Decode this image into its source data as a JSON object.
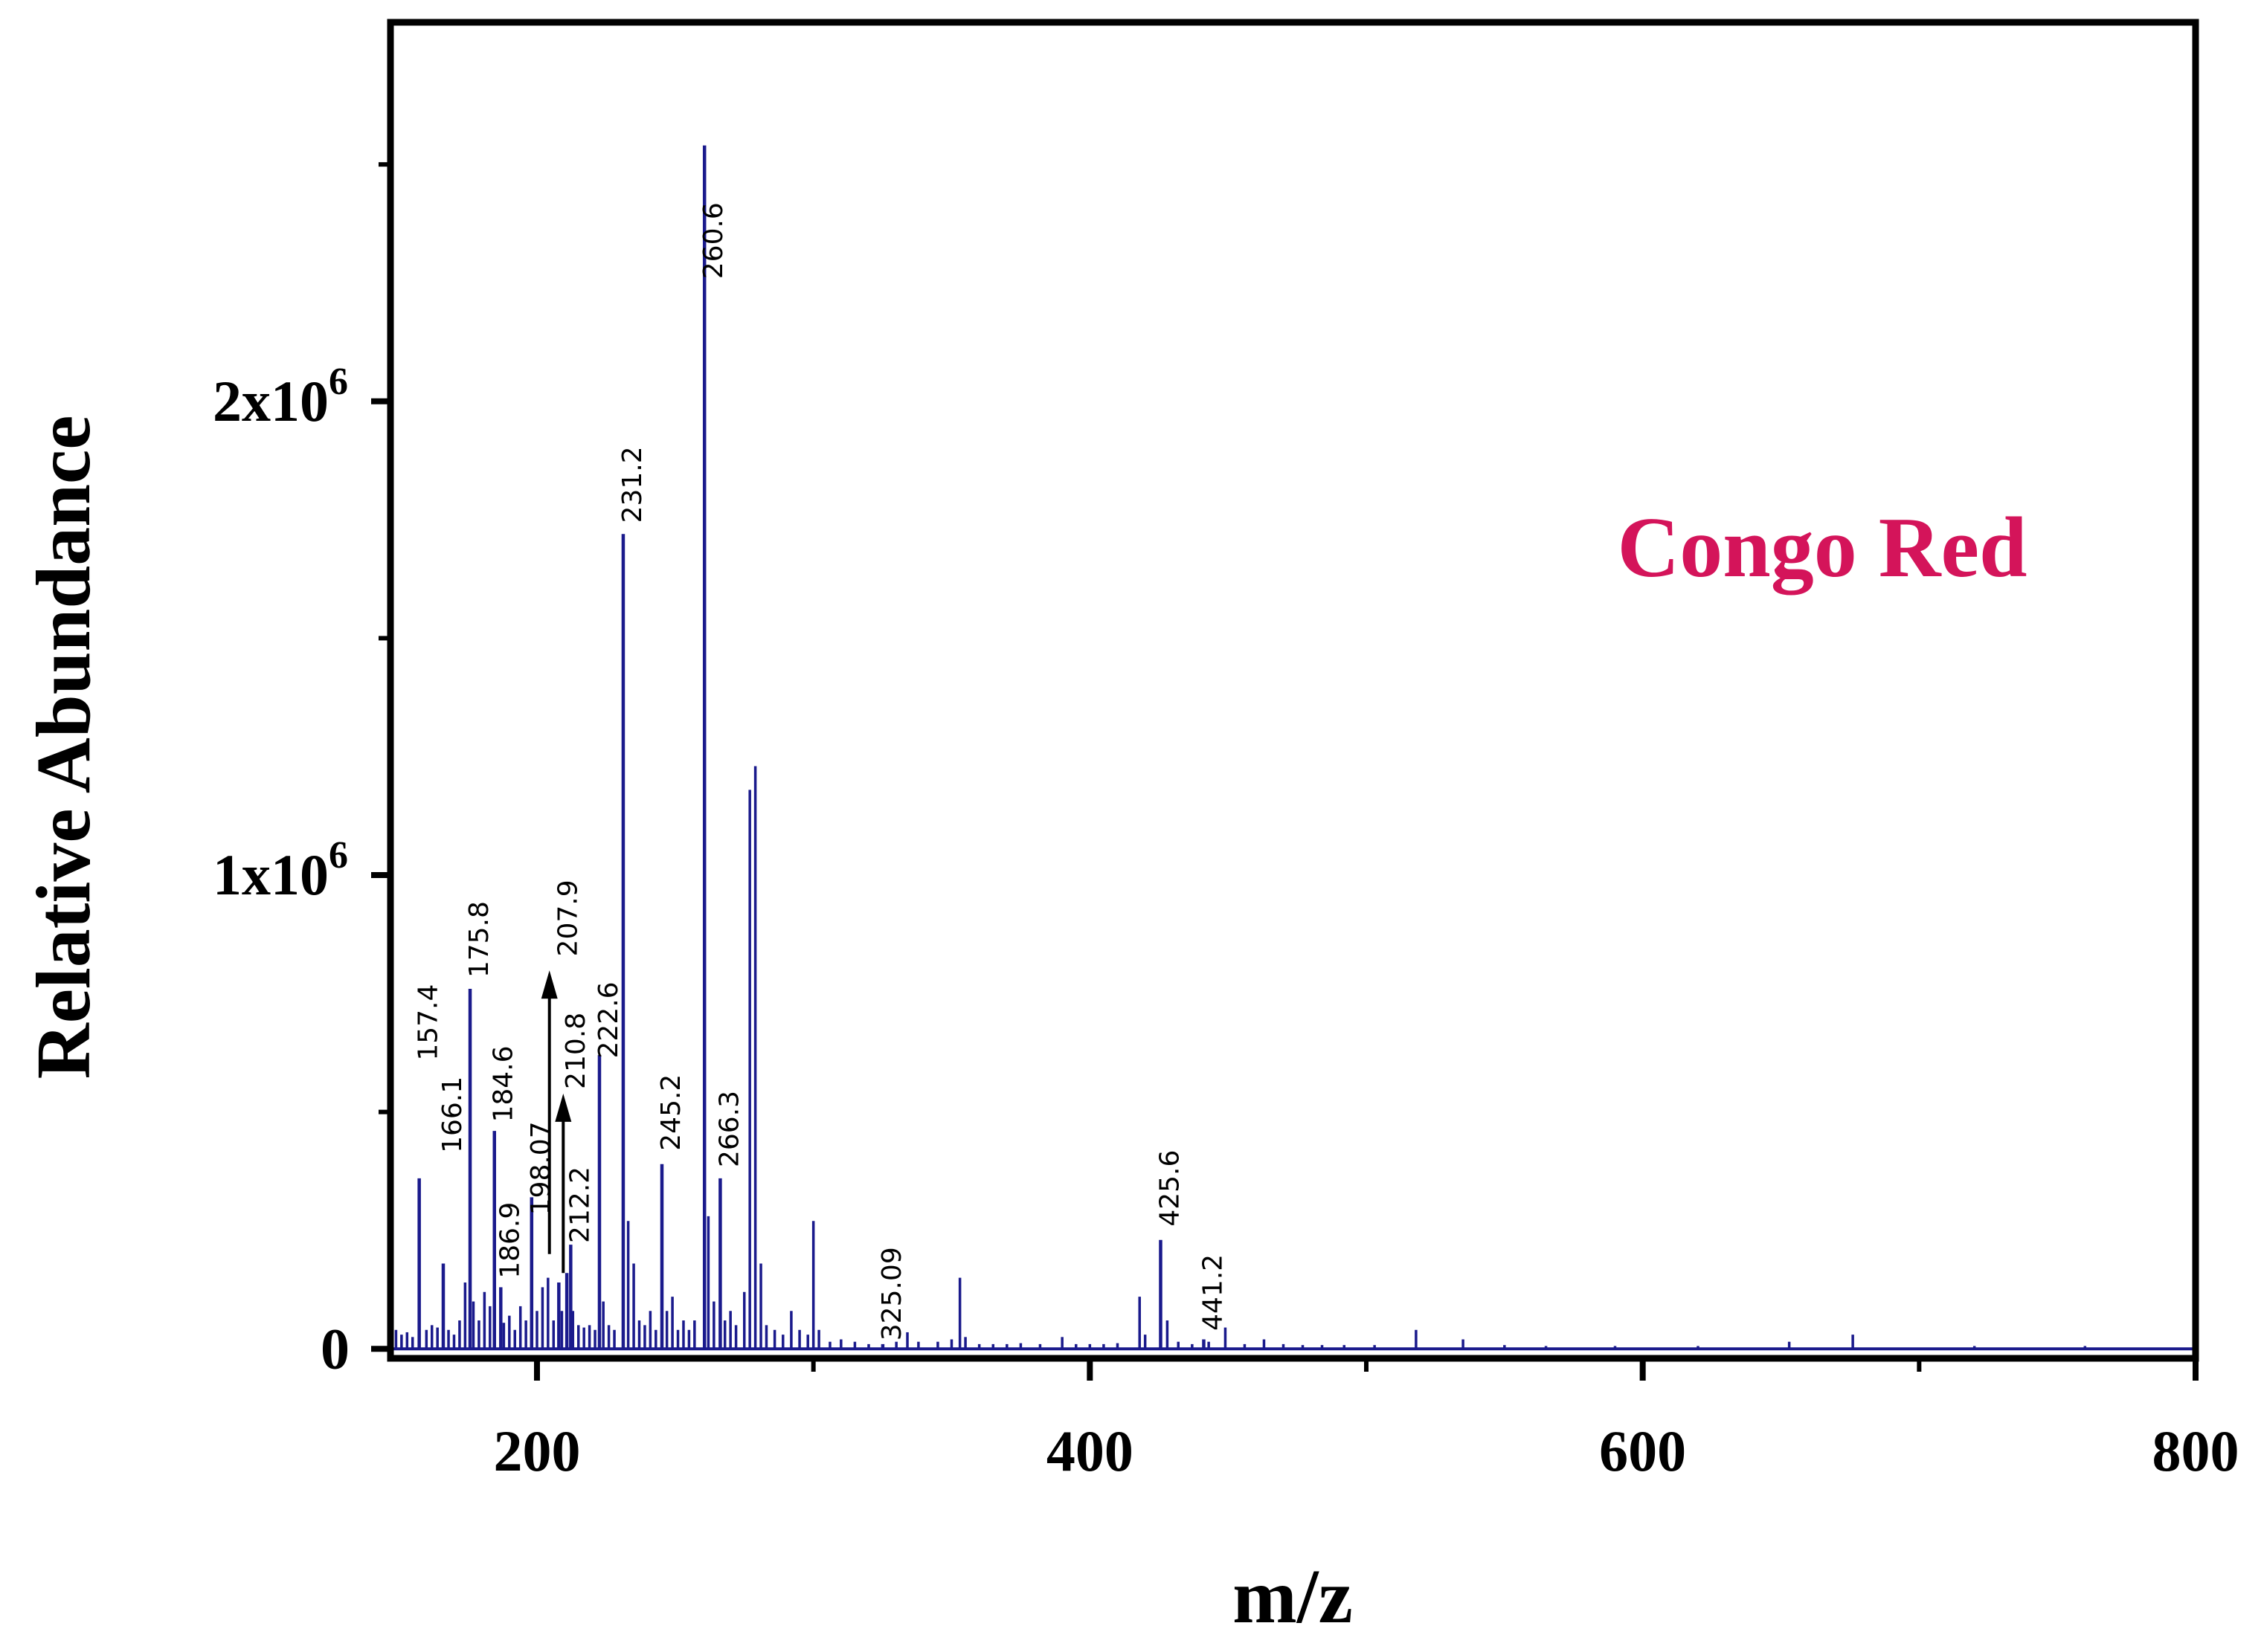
{
  "chart_data": {
    "type": "bar",
    "title": "",
    "annotation": {
      "text": "Congo Red",
      "color": "#d4145a"
    },
    "xlabel": "m/z",
    "ylabel": "Relative Abundance",
    "xlim": [
      147,
      800
    ],
    "ylim": [
      -20000,
      2800000
    ],
    "x_ticks": [
      {
        "value": 200,
        "label": "200"
      },
      {
        "value": 400,
        "label": "400"
      },
      {
        "value": 600,
        "label": "600"
      },
      {
        "value": 800,
        "label": "800"
      }
    ],
    "y_ticks": [
      {
        "value": 0,
        "base": "0",
        "exp": ""
      },
      {
        "value": 1000000,
        "base": "1x10",
        "exp": "6"
      },
      {
        "value": 2000000,
        "base": "2x10",
        "exp": "6"
      }
    ],
    "y_minor_ticks": [
      500000,
      1500000,
      2500000
    ],
    "x_minor_ticks": [
      300,
      500,
      700
    ],
    "series_color": "#1a1a8c",
    "peaks": [
      {
        "mz": 157.4,
        "abundance": 360000,
        "label": "157.4",
        "label_top": 770000
      },
      {
        "mz": 166.1,
        "abundance": 180000,
        "label": "166.1",
        "label_top": 575000
      },
      {
        "mz": 175.8,
        "abundance": 760000,
        "label": "175.8",
        "label_top": 945000
      },
      {
        "mz": 184.6,
        "abundance": 460000,
        "label": "184.6",
        "label_top": 640000
      },
      {
        "mz": 186.9,
        "abundance": 130000,
        "label": "186.9",
        "label_top": 310000
      },
      {
        "mz": 198.07,
        "abundance": 320000,
        "label": "198.07",
        "label_top": 480000
      },
      {
        "mz": 207.9,
        "abundance": 140000,
        "label": "207.9",
        "label_top": 990000
      },
      {
        "mz": 210.8,
        "abundance": 160000,
        "label": "210.8",
        "label_top": 710000
      },
      {
        "mz": 212.2,
        "abundance": 220000,
        "label": "212.2",
        "label_top": 385000
      },
      {
        "mz": 222.6,
        "abundance": 620000,
        "label": "222.6",
        "label_top": 775000
      },
      {
        "mz": 231.2,
        "abundance": 1720000,
        "label": "231.2",
        "label_top": 1905000
      },
      {
        "mz": 245.2,
        "abundance": 390000,
        "label": "245.2",
        "label_top": 580000
      },
      {
        "mz": 260.6,
        "abundance": 2540000,
        "label": "260.6",
        "label_top": 2420000
      },
      {
        "mz": 266.3,
        "abundance": 360000,
        "label": "266.3",
        "label_top": 545000
      },
      {
        "mz": 325.09,
        "abundance": 10000,
        "label": "325.09",
        "label_top": 215000
      },
      {
        "mz": 425.6,
        "abundance": 230000,
        "label": "425.6",
        "label_top": 420000
      },
      {
        "mz": 441.2,
        "abundance": 20000,
        "label": "441.2",
        "label_top": 200000
      }
    ],
    "minor_peaks": [
      [
        149,
        40000
      ],
      [
        151,
        30000
      ],
      [
        153,
        35000
      ],
      [
        155,
        25000
      ],
      [
        160,
        40000
      ],
      [
        162,
        50000
      ],
      [
        164,
        45000
      ],
      [
        168,
        40000
      ],
      [
        170,
        30000
      ],
      [
        172,
        60000
      ],
      [
        174,
        140000
      ],
      [
        177,
        100000
      ],
      [
        179,
        60000
      ],
      [
        181,
        120000
      ],
      [
        183,
        90000
      ],
      [
        188,
        55000
      ],
      [
        190,
        70000
      ],
      [
        192,
        40000
      ],
      [
        194,
        90000
      ],
      [
        196,
        60000
      ],
      [
        200,
        80000
      ],
      [
        202,
        130000
      ],
      [
        204,
        150000
      ],
      [
        206,
        60000
      ],
      [
        209,
        80000
      ],
      [
        213,
        80000
      ],
      [
        215,
        50000
      ],
      [
        217,
        45000
      ],
      [
        219,
        50000
      ],
      [
        221,
        40000
      ],
      [
        224,
        100000
      ],
      [
        226,
        50000
      ],
      [
        228,
        40000
      ],
      [
        233,
        270000
      ],
      [
        235,
        180000
      ],
      [
        237,
        60000
      ],
      [
        239,
        50000
      ],
      [
        241,
        80000
      ],
      [
        243,
        40000
      ],
      [
        247,
        80000
      ],
      [
        249,
        110000
      ],
      [
        251,
        40000
      ],
      [
        253,
        60000
      ],
      [
        255,
        40000
      ],
      [
        257,
        60000
      ],
      [
        262,
        280000
      ],
      [
        264,
        100000
      ],
      [
        268,
        60000
      ],
      [
        270,
        80000
      ],
      [
        272,
        50000
      ],
      [
        275,
        120000
      ],
      [
        277,
        1180000
      ],
      [
        279,
        1230000
      ],
      [
        281,
        180000
      ],
      [
        283,
        50000
      ],
      [
        286,
        40000
      ],
      [
        289,
        30000
      ],
      [
        292,
        80000
      ],
      [
        295,
        40000
      ],
      [
        298,
        30000
      ],
      [
        300,
        270000
      ],
      [
        302,
        40000
      ],
      [
        306,
        15000
      ],
      [
        310,
        20000
      ],
      [
        315,
        15000
      ],
      [
        320,
        10000
      ],
      [
        330,
        15000
      ],
      [
        334,
        35000
      ],
      [
        338,
        15000
      ],
      [
        345,
        15000
      ],
      [
        350,
        20000
      ],
      [
        353,
        150000
      ],
      [
        355,
        25000
      ],
      [
        360,
        10000
      ],
      [
        365,
        10000
      ],
      [
        370,
        10000
      ],
      [
        375,
        12000
      ],
      [
        382,
        10000
      ],
      [
        390,
        25000
      ],
      [
        395,
        10000
      ],
      [
        400,
        10000
      ],
      [
        405,
        10000
      ],
      [
        410,
        12000
      ],
      [
        418,
        110000
      ],
      [
        420,
        30000
      ],
      [
        428,
        60000
      ],
      [
        432,
        15000
      ],
      [
        437,
        10000
      ],
      [
        443,
        15000
      ],
      [
        449,
        45000
      ],
      [
        456,
        10000
      ],
      [
        463,
        20000
      ],
      [
        470,
        10000
      ],
      [
        477,
        8000
      ],
      [
        484,
        8000
      ],
      [
        492,
        8000
      ],
      [
        503,
        8000
      ],
      [
        518,
        40000
      ],
      [
        535,
        20000
      ],
      [
        550,
        8000
      ],
      [
        565,
        6000
      ],
      [
        590,
        6000
      ],
      [
        620,
        6000
      ],
      [
        653,
        15000
      ],
      [
        676,
        30000
      ],
      [
        720,
        6000
      ],
      [
        760,
        6000
      ]
    ],
    "arrows": [
      {
        "mz": 204.5,
        "from": 200000,
        "to": 780000
      },
      {
        "mz": 209.5,
        "from": 160000,
        "to": 520000
      }
    ]
  }
}
